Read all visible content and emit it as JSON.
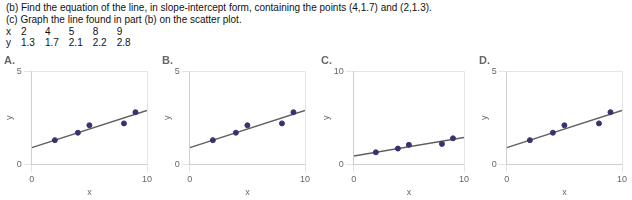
{
  "chart_data": [
    {
      "type": "scatter",
      "title": "A.",
      "x_label": "x",
      "y_label": "y",
      "xlim": [
        0,
        10
      ],
      "ylim": [
        0,
        5
      ],
      "xticks": [
        0,
        10
      ],
      "yticks": [
        0,
        5
      ],
      "grid": true,
      "annotations": [
        "(b) Find the equation of the line, in slope-intercept form, containing the points (4,1.7) and (2,1.3).",
        "(c) Graph the line found in part (b) on the scatter plot.",
        [
          "x",
          "2",
          "4",
          "5",
          "8",
          "9"
        ],
        [
          "y",
          "1.3",
          "1.7",
          "2.1",
          "2.2",
          "2.8"
        ]
      ],
      "series": [
        {
          "type": "scatter",
          "color": "#3a3270",
          "x": [
            2,
            4,
            5,
            8,
            9
          ],
          "values": [
            1.3,
            1.7,
            2.1,
            2.2,
            2.8
          ]
        },
        {
          "type": "line",
          "color": "#606060",
          "x": [
            0,
            10
          ],
          "values": [
            0.9,
            2.9
          ]
        }
      ]
    },
    {
      "type": "scatter",
      "title": "B.",
      "x_label": "x",
      "y_label": "y",
      "xlim": [
        0,
        10
      ],
      "ylim": [
        0,
        5
      ],
      "xticks": [
        0,
        10
      ],
      "yticks": [
        0,
        5
      ],
      "grid": true,
      "series": [
        {
          "type": "scatter",
          "color": "#3a3270",
          "x": [
            2,
            4,
            5,
            8,
            9
          ],
          "values": [
            1.3,
            1.7,
            2.1,
            2.2,
            2.8
          ]
        },
        {
          "type": "line",
          "color": "#606060",
          "x": [
            0,
            10
          ],
          "values": [
            0.9,
            2.9
          ]
        }
      ]
    },
    {
      "type": "scatter",
      "title": "C.",
      "x_label": "x",
      "y_label": "y",
      "xlim": [
        0,
        10
      ],
      "ylim": [
        0,
        10
      ],
      "xticks": [
        0,
        10
      ],
      "yticks": [
        0,
        10
      ],
      "grid": true,
      "series": [
        {
          "type": "scatter",
          "color": "#3a3270",
          "x": [
            2,
            4,
            5,
            8,
            9
          ],
          "values": [
            1.3,
            1.7,
            2.1,
            2.2,
            2.8
          ]
        },
        {
          "type": "line",
          "color": "#606060",
          "x": [
            0,
            10
          ],
          "values": [
            0.9,
            2.9
          ]
        }
      ]
    },
    {
      "type": "scatter",
      "title": "D.",
      "x_label": "x",
      "y_label": "y",
      "xlim": [
        0,
        10
      ],
      "ylim": [
        0,
        5
      ],
      "xticks": [
        0,
        10
      ],
      "yticks": [
        0,
        5
      ],
      "grid": true,
      "series": [
        {
          "type": "scatter",
          "color": "#3a3270",
          "x": [
            2,
            4,
            5,
            8,
            9
          ],
          "values": [
            1.3,
            1.7,
            2.1,
            2.2,
            2.8
          ]
        },
        {
          "type": "line",
          "color": "#606060",
          "x": [
            0,
            10
          ],
          "values": [
            0.9,
            2.9
          ]
        }
      ]
    }
  ]
}
